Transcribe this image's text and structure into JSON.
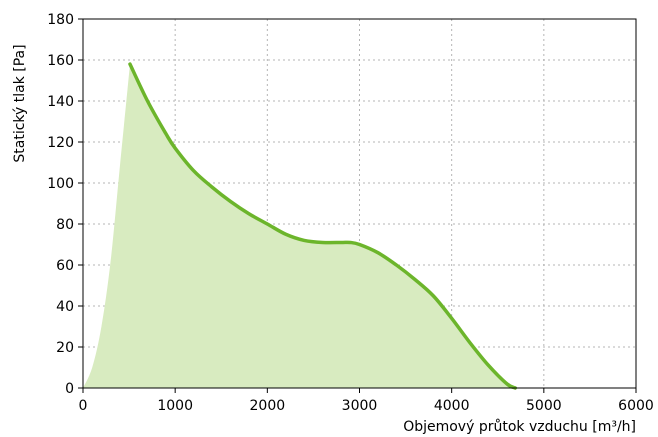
{
  "chart_data": {
    "type": "area",
    "xlabel": "Objemový průtok vzduchu [m³/h]",
    "ylabel": "Statický tlak [Pa]",
    "xlim": [
      0,
      6000
    ],
    "ylim": [
      0,
      180
    ],
    "x_ticks": [
      0,
      1000,
      2000,
      3000,
      4000,
      5000,
      6000
    ],
    "y_ticks": [
      0,
      20,
      40,
      60,
      80,
      100,
      120,
      140,
      160,
      180
    ],
    "grid": true,
    "grid_style": "dotted",
    "series": [
      {
        "role": "curve",
        "color": "#6cb52b",
        "x": [
          510,
          700,
          900,
          1000,
          1200,
          1400,
          1600,
          1800,
          2000,
          2200,
          2400,
          2600,
          2800,
          2900,
          3000,
          3200,
          3400,
          3600,
          3800,
          4000,
          4200,
          4400,
          4600,
          4690
        ],
        "y": [
          158,
          140,
          124,
          117,
          106,
          98,
          91,
          85,
          80,
          75,
          72,
          71,
          71,
          71,
          70,
          66,
          60,
          53,
          45,
          34,
          22,
          11,
          2,
          0
        ]
      }
    ],
    "fill_region": {
      "color": "#d8ebc0",
      "lower_boundary": {
        "x": [
          0,
          100,
          200,
          300,
          400,
          510
        ],
        "y": [
          0,
          10,
          30,
          62,
          108,
          158
        ]
      }
    }
  }
}
